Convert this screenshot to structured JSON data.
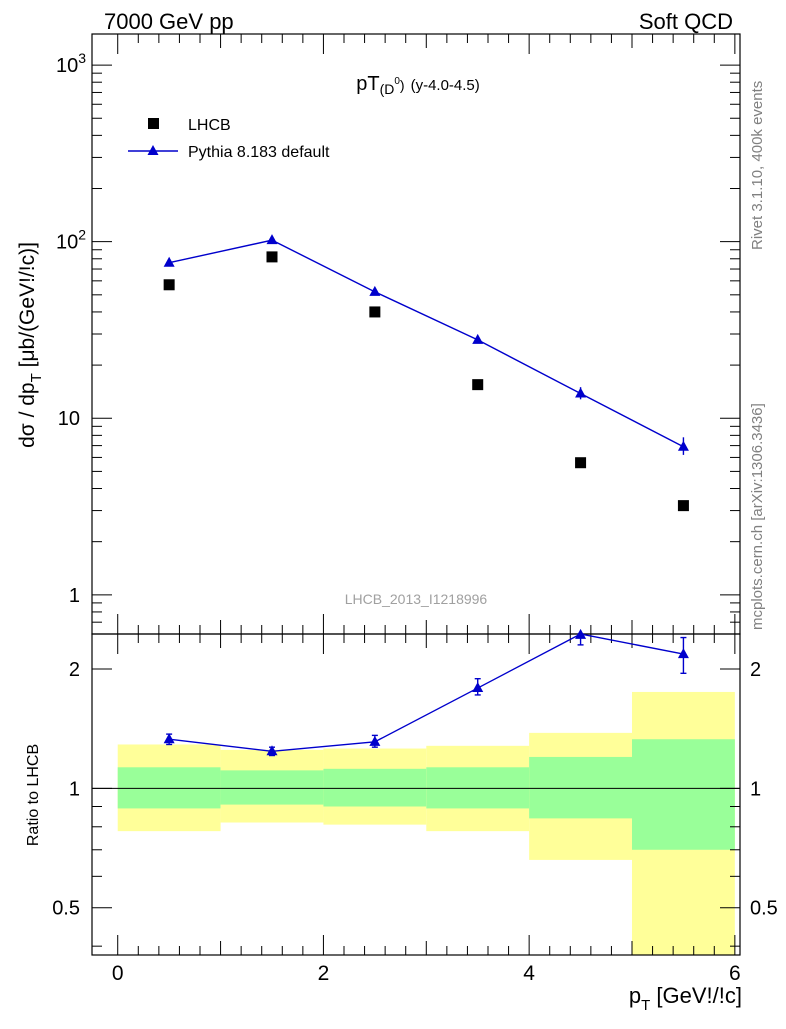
{
  "header": {
    "left": "7000 GeV pp",
    "right": "Soft QCD"
  },
  "side_labels": {
    "rivet": "Rivet 3.1.10,  400k events",
    "mcplots": "mcplots.cern.ch [arXiv:1306.3436]"
  },
  "watermark": "LHCB_2013_I1218996",
  "colors": {
    "data": "#000000",
    "mc": "#0000cc",
    "band_inner": "#99ff99",
    "band_outer": "#ffff99"
  },
  "chart_data": [
    {
      "type": "scatter",
      "title": "pT",
      "title_sub": "(D",
      "title_sup": "0",
      "title_close": ")",
      "title_extra": "(y-4.0-4.5)",
      "ylabel": "dσ / dp_T [μb/(GeV!/!c)]",
      "yscale": "log",
      "ylim": [
        0.6,
        1500
      ],
      "xlim": [
        -0.25,
        6.05
      ],
      "ytick_labels": [
        "1",
        "10",
        "10^2",
        "10^3"
      ],
      "legend_position": "top-left",
      "series": [
        {
          "name": "LHCB",
          "marker": "square",
          "x": [
            0.5,
            1.5,
            2.5,
            3.5,
            4.5,
            5.5
          ],
          "y": [
            57,
            82,
            40,
            15.5,
            5.6,
            3.2
          ]
        },
        {
          "name": "Pythia 8.183 default",
          "marker": "triangle",
          "x": [
            0.5,
            1.5,
            2.5,
            3.5,
            4.5,
            5.5
          ],
          "y": [
            76,
            102,
            52,
            27.8,
            13.8,
            6.9
          ],
          "yerr_low": [
            74,
            100,
            50.5,
            27,
            12.8,
            6.2
          ],
          "yerr_high": [
            78,
            104,
            53.5,
            29,
            15,
            7.8
          ]
        }
      ]
    },
    {
      "type": "line",
      "ylabel": "Ratio to LHCB",
      "xlabel": "p_T [GeV!/!c]",
      "yscale": "log",
      "ylim": [
        0.38,
        2.45
      ],
      "xlim": [
        -0.25,
        6.05
      ],
      "xtick_labels": [
        "0",
        "2",
        "4",
        "6"
      ],
      "ytick_labels": [
        "0.5",
        "1",
        "2"
      ],
      "reference_line": 1,
      "bins": [
        [
          0,
          1
        ],
        [
          1,
          2
        ],
        [
          2,
          3
        ],
        [
          3,
          4
        ],
        [
          4,
          5
        ],
        [
          5,
          6
        ]
      ],
      "band_outer": {
        "low": [
          0.78,
          0.82,
          0.81,
          0.78,
          0.66,
          0.38
        ],
        "high": [
          1.29,
          1.25,
          1.26,
          1.28,
          1.38,
          1.75
        ]
      },
      "band_inner": {
        "low": [
          0.89,
          0.91,
          0.9,
          0.89,
          0.84,
          0.7
        ],
        "high": [
          1.13,
          1.11,
          1.12,
          1.13,
          1.2,
          1.33
        ]
      },
      "series": [
        {
          "name": "Pythia 8.183 default",
          "x": [
            0.5,
            1.5,
            2.5,
            3.5,
            4.5,
            5.5
          ],
          "y": [
            1.33,
            1.24,
            1.31,
            1.79,
            2.45,
            2.18
          ],
          "yerr_low": [
            1.29,
            1.21,
            1.27,
            1.72,
            2.3,
            1.95
          ],
          "yerr_high": [
            1.37,
            1.27,
            1.36,
            1.89,
            2.6,
            2.4
          ]
        }
      ]
    }
  ]
}
